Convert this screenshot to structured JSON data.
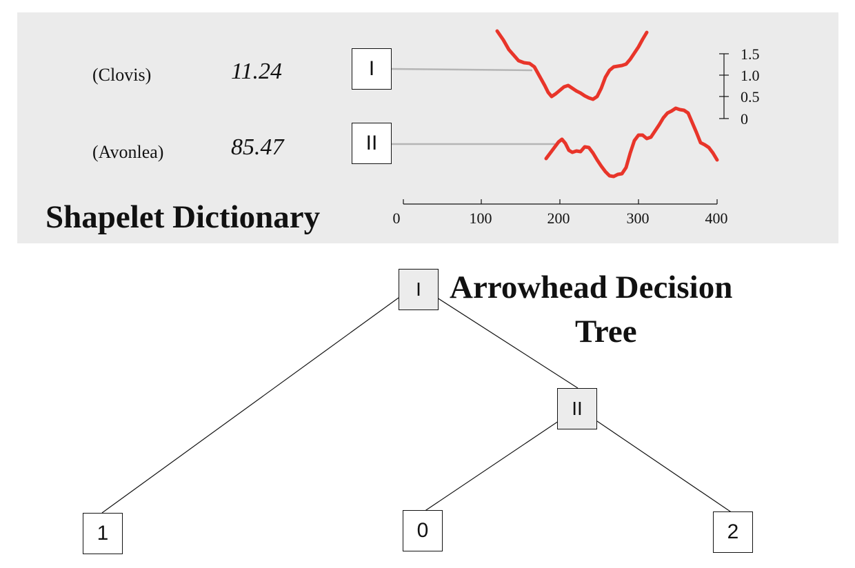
{
  "dictionary": {
    "title": "Shapelet Dictionary",
    "shapelets": [
      {
        "id": "I",
        "class_label": "(Clovis)",
        "threshold": "11.24"
      },
      {
        "id": "II",
        "class_label": "(Avonlea)",
        "threshold": "85.47"
      }
    ],
    "x_axis": {
      "ticks": [
        "0",
        "100",
        "200",
        "300",
        "400"
      ]
    },
    "y_axis": {
      "ticks": [
        "1.5",
        "1.0",
        "0.5",
        "0"
      ]
    },
    "curve_color": "#e8352a"
  },
  "tree": {
    "title_line1": "Arrowhead Decision",
    "title_line2": "Tree",
    "root": "I",
    "inner": "II",
    "leaves": [
      "1",
      "0",
      "2"
    ]
  }
}
